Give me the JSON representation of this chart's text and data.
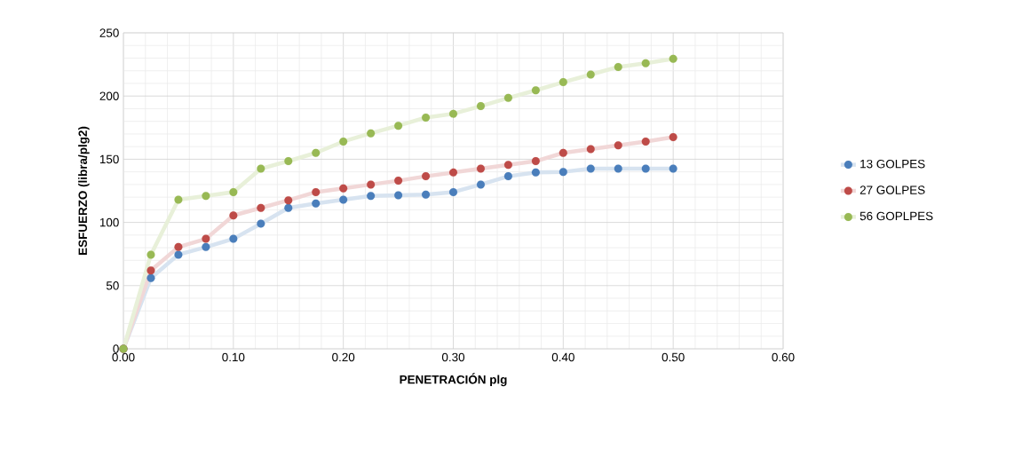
{
  "chart_data": {
    "type": "line",
    "xlabel": "PENETRACIÓN plg",
    "ylabel": "ESFUERZO (libra/plg2)",
    "x": [
      0,
      0.025,
      0.05,
      0.075,
      0.1,
      0.125,
      0.15,
      0.175,
      0.2,
      0.225,
      0.25,
      0.275,
      0.3,
      0.325,
      0.35,
      0.375,
      0.4,
      0.425,
      0.45,
      0.475,
      0.5
    ],
    "series": [
      {
        "name": "13 GOLPES",
        "color": "#4a7ebb",
        "values": [
          0,
          56,
          74.5,
          80.5,
          87,
          99,
          111.5,
          115,
          118,
          121,
          121.5,
          122,
          124,
          130,
          136.5,
          139.5,
          140,
          142.5,
          142.5,
          142.5,
          142.5
        ]
      },
      {
        "name": "27 GOLPES",
        "color": "#be4b48",
        "values": [
          0,
          62,
          80.5,
          87,
          105.5,
          111.5,
          117.5,
          124,
          127,
          130,
          133,
          136.5,
          139.5,
          142.5,
          145.5,
          148.5,
          155,
          158,
          161,
          164,
          167.5
        ]
      },
      {
        "name": "56 GOPLPES",
        "color": "#98b954",
        "values": [
          0,
          74.5,
          118,
          121,
          124,
          142.5,
          148.5,
          155,
          164,
          170.5,
          176.5,
          183,
          186,
          192,
          198.5,
          204.5,
          211,
          217,
          223,
          226,
          229.5
        ]
      }
    ],
    "xlim": [
      0,
      0.6
    ],
    "xticks": [
      {
        "value": 0,
        "label": "0.00"
      },
      {
        "value": 0.1,
        "label": "0.10"
      },
      {
        "value": 0.2,
        "label": "0.20"
      },
      {
        "value": 0.3,
        "label": "0.30"
      },
      {
        "value": 0.4,
        "label": "0.40"
      },
      {
        "value": 0.5,
        "label": "0.50"
      },
      {
        "value": 0.6,
        "label": "0.60"
      }
    ],
    "ylim": [
      0,
      250
    ],
    "yticks": [
      0,
      50,
      100,
      150,
      200,
      250
    ],
    "grid": true,
    "legend": "right",
    "marker": "circle"
  }
}
